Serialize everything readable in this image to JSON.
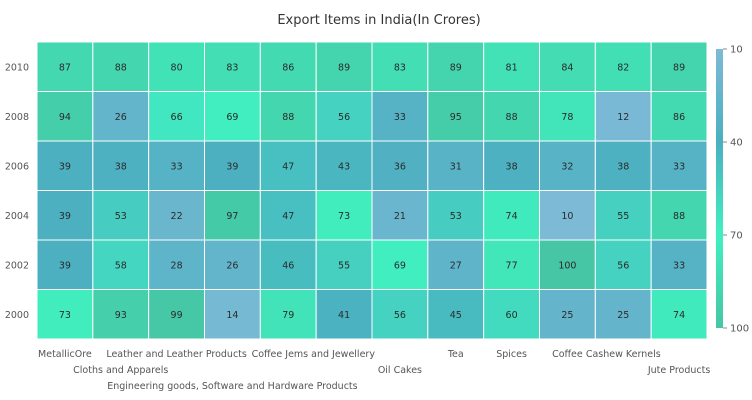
{
  "chart_data": {
    "type": "heatmap",
    "title": "Export Items in India(In Crores)",
    "x_categories": [
      "MetallicOre",
      "Cloths and Apparels",
      "Leather and Leather Products",
      "Engineering goods, Software and Hardware Products",
      "Coffee Jems and Jewellery",
      "",
      "Oil Cakes",
      "Tea",
      "Spices",
      "Coffee",
      "Cashew Kernels",
      "Jute Products"
    ],
    "y_categories": [
      "2010",
      "2008",
      "2006",
      "2004",
      "2002",
      "2000"
    ],
    "values": [
      [
        87,
        88,
        80,
        83,
        86,
        89,
        83,
        89,
        81,
        84,
        82,
        89
      ],
      [
        94,
        26,
        66,
        69,
        88,
        56,
        33,
        95,
        88,
        78,
        12,
        86
      ],
      [
        39,
        38,
        33,
        39,
        47,
        43,
        36,
        31,
        38,
        32,
        38,
        33
      ],
      [
        39,
        53,
        22,
        97,
        47,
        73,
        21,
        53,
        74,
        10,
        55,
        88
      ],
      [
        39,
        58,
        28,
        26,
        46,
        55,
        69,
        27,
        77,
        100,
        56,
        33
      ],
      [
        73,
        93,
        99,
        14,
        79,
        41,
        56,
        45,
        60,
        25,
        25,
        74
      ]
    ],
    "color_scale": {
      "min": 10,
      "max": 100,
      "stops": [
        {
          "value": 10,
          "color": "#7dbad6"
        },
        {
          "value": 40,
          "color": "#4ab0c0"
        },
        {
          "value": 70,
          "color": "#40f0c0"
        },
        {
          "value": 100,
          "color": "#46c6a4"
        }
      ]
    },
    "legend": {
      "position": "right",
      "ticks": [
        "10",
        "40",
        "70",
        "100"
      ]
    }
  }
}
